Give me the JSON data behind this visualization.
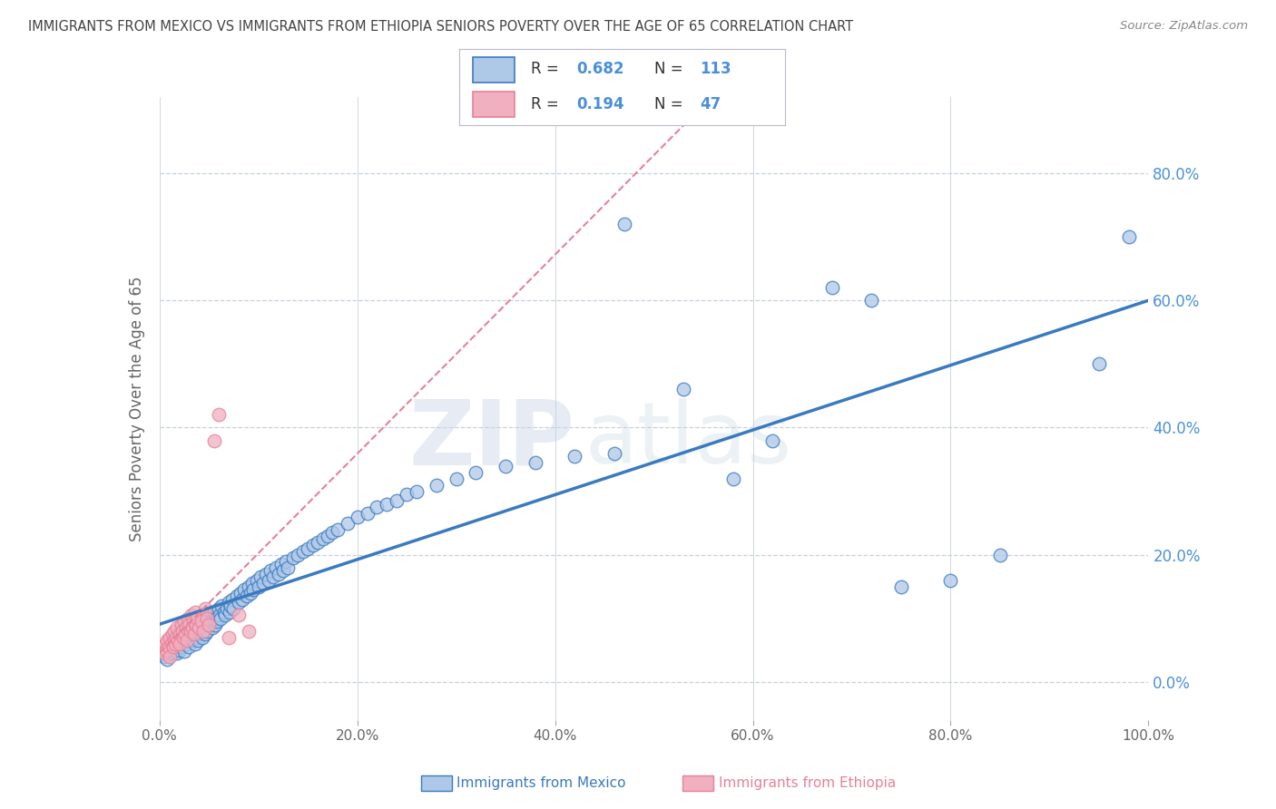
{
  "title": "IMMIGRANTS FROM MEXICO VS IMMIGRANTS FROM ETHIOPIA SENIORS POVERTY OVER THE AGE OF 65 CORRELATION CHART",
  "source": "Source: ZipAtlas.com",
  "ylabel": "Seniors Poverty Over the Age of 65",
  "xlim": [
    0.0,
    1.0
  ],
  "ylim": [
    -0.06,
    0.92
  ],
  "x_ticks": [
    0.0,
    0.2,
    0.4,
    0.6,
    0.8,
    1.0
  ],
  "x_tick_labels": [
    "0.0%",
    "20.0%",
    "40.0%",
    "60.0%",
    "80.0%",
    "100.0%"
  ],
  "y_ticks": [
    0.0,
    0.2,
    0.4,
    0.6,
    0.8
  ],
  "y_tick_labels": [
    "0.0%",
    "20.0%",
    "40.0%",
    "60.0%",
    "80.0%"
  ],
  "mexico_color": "#aec8e8",
  "ethiopia_color": "#f0b0c0",
  "line_mexico_color": "#3a7abf",
  "line_ethiopia_color": "#e88098",
  "R_mexico": 0.682,
  "N_mexico": 113,
  "R_ethiopia": 0.194,
  "N_ethiopia": 47,
  "legend_label_mexico": "Immigrants from Mexico",
  "legend_label_ethiopia": "Immigrants from Ethiopia",
  "watermark_zip": "ZIP",
  "watermark_atlas": "atlas",
  "background_color": "#ffffff",
  "grid_color": "#c8d0dc",
  "title_color": "#444444",
  "axis_label_color": "#666666",
  "right_axis_color": "#4a90d9",
  "mexico_x": [
    0.005,
    0.008,
    0.01,
    0.012,
    0.015,
    0.016,
    0.018,
    0.02,
    0.02,
    0.022,
    0.023,
    0.025,
    0.025,
    0.027,
    0.028,
    0.03,
    0.03,
    0.032,
    0.033,
    0.035,
    0.036,
    0.037,
    0.038,
    0.039,
    0.04,
    0.04,
    0.042,
    0.043,
    0.044,
    0.045,
    0.046,
    0.047,
    0.048,
    0.05,
    0.05,
    0.052,
    0.053,
    0.055,
    0.056,
    0.057,
    0.058,
    0.06,
    0.061,
    0.062,
    0.063,
    0.065,
    0.066,
    0.068,
    0.07,
    0.071,
    0.072,
    0.074,
    0.075,
    0.078,
    0.08,
    0.082,
    0.084,
    0.086,
    0.088,
    0.09,
    0.092,
    0.094,
    0.095,
    0.098,
    0.1,
    0.102,
    0.105,
    0.108,
    0.11,
    0.112,
    0.115,
    0.118,
    0.12,
    0.123,
    0.125,
    0.128,
    0.13,
    0.135,
    0.14,
    0.145,
    0.15,
    0.155,
    0.16,
    0.165,
    0.17,
    0.175,
    0.18,
    0.19,
    0.2,
    0.21,
    0.22,
    0.23,
    0.24,
    0.25,
    0.26,
    0.28,
    0.3,
    0.32,
    0.35,
    0.38,
    0.42,
    0.46,
    0.47,
    0.53,
    0.58,
    0.62,
    0.68,
    0.72,
    0.75,
    0.8,
    0.85,
    0.95,
    0.98
  ],
  "mexico_y": [
    0.04,
    0.035,
    0.055,
    0.045,
    0.06,
    0.05,
    0.045,
    0.065,
    0.05,
    0.055,
    0.07,
    0.048,
    0.075,
    0.06,
    0.065,
    0.07,
    0.055,
    0.08,
    0.065,
    0.075,
    0.06,
    0.085,
    0.07,
    0.065,
    0.09,
    0.075,
    0.08,
    0.07,
    0.095,
    0.085,
    0.075,
    0.1,
    0.08,
    0.09,
    0.105,
    0.095,
    0.085,
    0.11,
    0.09,
    0.1,
    0.095,
    0.115,
    0.105,
    0.1,
    0.12,
    0.11,
    0.105,
    0.115,
    0.125,
    0.11,
    0.12,
    0.13,
    0.115,
    0.135,
    0.125,
    0.14,
    0.13,
    0.145,
    0.135,
    0.15,
    0.14,
    0.155,
    0.145,
    0.16,
    0.15,
    0.165,
    0.155,
    0.17,
    0.16,
    0.175,
    0.165,
    0.18,
    0.17,
    0.185,
    0.175,
    0.19,
    0.18,
    0.195,
    0.2,
    0.205,
    0.21,
    0.215,
    0.22,
    0.225,
    0.23,
    0.235,
    0.24,
    0.25,
    0.26,
    0.265,
    0.275,
    0.28,
    0.285,
    0.295,
    0.3,
    0.31,
    0.32,
    0.33,
    0.34,
    0.345,
    0.355,
    0.36,
    0.72,
    0.46,
    0.32,
    0.38,
    0.62,
    0.6,
    0.15,
    0.16,
    0.2,
    0.5,
    0.7
  ],
  "ethiopia_x": [
    0.003,
    0.005,
    0.006,
    0.007,
    0.008,
    0.009,
    0.01,
    0.01,
    0.012,
    0.013,
    0.014,
    0.015,
    0.015,
    0.016,
    0.017,
    0.018,
    0.019,
    0.02,
    0.02,
    0.022,
    0.023,
    0.024,
    0.025,
    0.026,
    0.027,
    0.028,
    0.029,
    0.03,
    0.031,
    0.032,
    0.033,
    0.034,
    0.035,
    0.036,
    0.037,
    0.038,
    0.04,
    0.042,
    0.044,
    0.046,
    0.048,
    0.05,
    0.055,
    0.06,
    0.07,
    0.08,
    0.09
  ],
  "ethiopia_y": [
    0.055,
    0.045,
    0.06,
    0.05,
    0.065,
    0.055,
    0.04,
    0.07,
    0.06,
    0.075,
    0.055,
    0.065,
    0.08,
    0.06,
    0.07,
    0.085,
    0.065,
    0.075,
    0.06,
    0.09,
    0.08,
    0.07,
    0.095,
    0.075,
    0.085,
    0.065,
    0.1,
    0.09,
    0.08,
    0.105,
    0.085,
    0.095,
    0.075,
    0.11,
    0.09,
    0.1,
    0.085,
    0.095,
    0.08,
    0.115,
    0.1,
    0.09,
    0.38,
    0.42,
    0.07,
    0.105,
    0.08
  ]
}
